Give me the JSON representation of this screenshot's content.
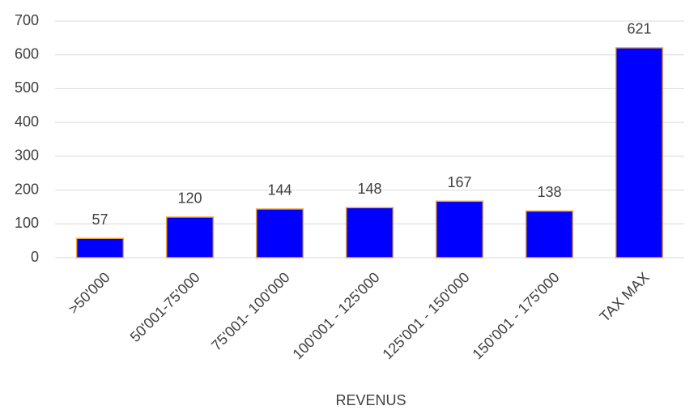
{
  "chart_data": {
    "type": "bar",
    "x_label": "REVENUS",
    "categories": [
      ">50'000",
      "50'001-75'000",
      "75'001- 100'000",
      "100'001 - 125'000",
      "125'001 - 150'000",
      "150'001 - 175'000",
      "TAX MAX"
    ],
    "values": [
      57,
      120,
      144,
      148,
      167,
      138,
      621
    ],
    "color": "#0000ff",
    "edge_color": "#f0a830",
    "ylim": [
      0,
      700
    ],
    "yticks": [
      0,
      100,
      200,
      300,
      400,
      500,
      600,
      700
    ],
    "grid": true
  }
}
